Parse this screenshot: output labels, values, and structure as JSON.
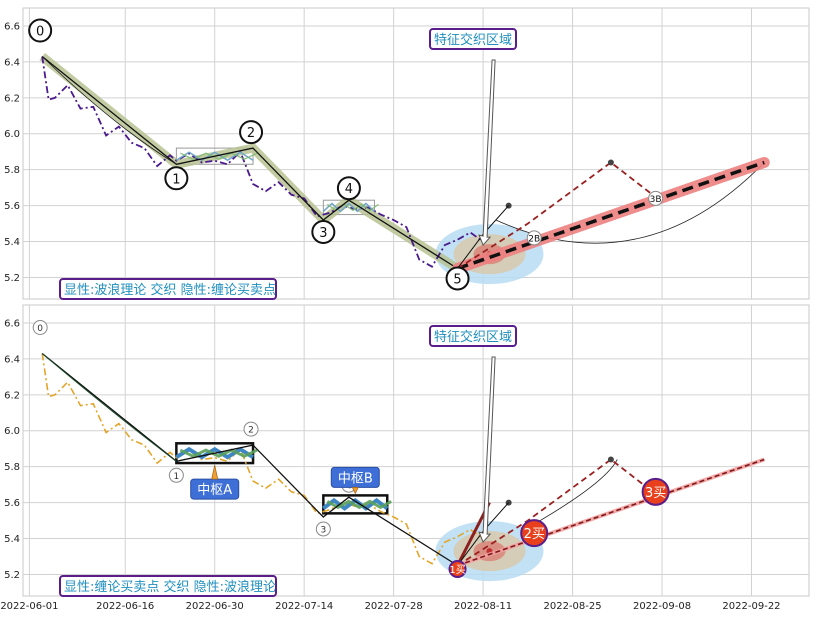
{
  "chart_data": {
    "type": "line",
    "x_ticks": [
      "2022-06-01",
      "2022-06-16",
      "2022-06-30",
      "2022-07-14",
      "2022-07-28",
      "2022-08-11",
      "2022-08-25",
      "2022-09-08",
      "2022-09-22"
    ],
    "y_ticks": [
      5.2,
      5.4,
      5.6,
      5.8,
      6.0,
      6.2,
      6.4,
      6.6
    ],
    "ylim": [
      5.08,
      6.7
    ],
    "xlim": [
      "2022-05-31",
      "2022-10-01"
    ],
    "grid": true,
    "price_series": {
      "x": [
        "2022-06-03",
        "2022-06-04",
        "2022-06-05",
        "2022-06-07",
        "2022-06-09",
        "2022-06-11",
        "2022-06-13",
        "2022-06-15",
        "2022-06-17",
        "2022-06-19",
        "2022-06-21",
        "2022-06-23",
        "2022-06-24",
        "2022-06-26",
        "2022-06-28",
        "2022-06-30",
        "2022-07-02",
        "2022-07-04",
        "2022-07-06",
        "2022-07-08",
        "2022-07-10",
        "2022-07-12",
        "2022-07-14",
        "2022-07-16",
        "2022-07-18",
        "2022-07-20",
        "2022-07-22",
        "2022-07-24",
        "2022-07-26",
        "2022-07-28",
        "2022-07-30",
        "2022-08-01",
        "2022-08-03",
        "2022-08-05",
        "2022-08-07",
        "2022-08-09",
        "2022-08-11",
        "2022-08-12"
      ],
      "y": [
        6.43,
        6.19,
        6.2,
        6.27,
        6.14,
        6.15,
        5.99,
        6.04,
        5.95,
        5.92,
        5.82,
        5.88,
        5.85,
        5.89,
        5.84,
        5.85,
        5.83,
        5.9,
        5.72,
        5.68,
        5.73,
        5.66,
        5.64,
        5.54,
        5.56,
        5.6,
        5.58,
        5.59,
        5.55,
        5.52,
        5.48,
        5.3,
        5.26,
        5.38,
        5.41,
        5.45,
        5.4,
        5.42
      ]
    },
    "waves": [
      {
        "label": "0",
        "x": "2022-06-03",
        "y": 6.43
      },
      {
        "label": "1",
        "x": "2022-06-24",
        "y": 5.83
      },
      {
        "label": "2",
        "x": "2022-07-06",
        "y": 5.92
      },
      {
        "label": "3",
        "x": "2022-07-17",
        "y": 5.52
      },
      {
        "label": "4",
        "x": "2022-07-21",
        "y": 5.63
      },
      {
        "label": "5",
        "x": "2022-08-07",
        "y": 5.25
      }
    ],
    "wave_path": [
      {
        "x": "2022-06-03",
        "y": 6.43
      },
      {
        "x": "2022-06-24",
        "y": 5.83
      },
      {
        "x": "2022-07-06",
        "y": 5.92
      },
      {
        "x": "2022-07-17",
        "y": 5.52
      },
      {
        "x": "2022-07-21",
        "y": 5.63
      },
      {
        "x": "2022-08-07",
        "y": 5.25
      }
    ],
    "trend_line": {
      "x0": "2022-08-07",
      "y0": 5.25,
      "x1": "2022-09-24",
      "y1": 5.84
    },
    "forecast_path": [
      {
        "x": "2022-08-07",
        "y": 5.25
      },
      {
        "x": "2022-08-18",
        "y": 5.5
      },
      {
        "x": "2022-08-31",
        "y": 5.84
      },
      {
        "x": "2022-09-08",
        "y": 5.62
      }
    ],
    "forecast_points": [
      {
        "x": "2022-08-31",
        "y": 5.84
      },
      {
        "x": "2022-08-15",
        "y": 5.6
      }
    ],
    "panels": [
      {
        "legend": "显性:波浪理论 交织 隐性:缠论买卖点",
        "annotation": "特征交织区域",
        "zones": [
          {
            "x0": "2022-06-24",
            "x1": "2022-07-06",
            "y0": 5.83,
            "y1": 5.92,
            "label": ""
          },
          {
            "x0": "2022-07-17",
            "x1": "2022-07-25",
            "y0": 5.55,
            "y1": 5.63,
            "label": ""
          }
        ],
        "buy_points": [
          {
            "label": "2B",
            "x": "2022-08-19",
            "y": 5.42
          },
          {
            "label": "3B",
            "x": "2022-09-07",
            "y": 5.64
          }
        ]
      },
      {
        "legend": "显性:缠论买卖点 交织 隐性:波浪理论",
        "annotation": "特征交织区域",
        "zones": [
          {
            "x0": "2022-06-24",
            "x1": "2022-07-06",
            "y0": 5.82,
            "y1": 5.93,
            "label": "中枢A"
          },
          {
            "x0": "2022-07-17",
            "x1": "2022-07-27",
            "y0": 5.54,
            "y1": 5.64,
            "label": "中枢B"
          }
        ],
        "buy_points": [
          {
            "label": "1买",
            "x": "2022-08-07",
            "y": 5.23
          },
          {
            "label": "2买",
            "x": "2022-08-19",
            "y": 5.43
          },
          {
            "label": "3买",
            "x": "2022-09-07",
            "y": 5.66
          }
        ]
      }
    ]
  }
}
